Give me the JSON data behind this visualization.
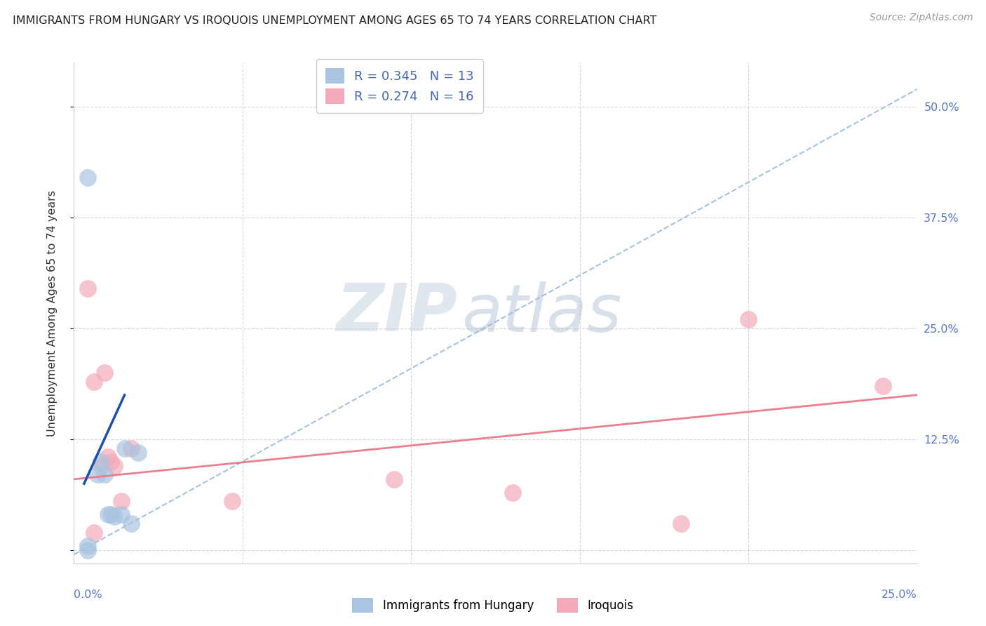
{
  "title": "IMMIGRANTS FROM HUNGARY VS IROQUOIS UNEMPLOYMENT AMONG AGES 65 TO 74 YEARS CORRELATION CHART",
  "source": "Source: ZipAtlas.com",
  "ylabel": "Unemployment Among Ages 65 to 74 years",
  "xlim": [
    0.0,
    0.25
  ],
  "ylim": [
    -0.015,
    0.55
  ],
  "legend1_R": "0.345",
  "legend1_N": "13",
  "legend2_R": "0.274",
  "legend2_N": "16",
  "blue_color": "#a8c4e0",
  "pink_color": "#f4aaba",
  "blue_line_solid_color": "#1a50b0",
  "blue_line_dashed_color": "#99bbdd",
  "pink_line_color": "#e8788a",
  "blue_points_x": [
    0.004,
    0.007,
    0.008,
    0.009,
    0.01,
    0.011,
    0.012,
    0.014,
    0.015,
    0.017,
    0.019,
    0.004,
    0.004
  ],
  "blue_points_y": [
    0.42,
    0.085,
    0.1,
    0.085,
    0.04,
    0.04,
    0.038,
    0.04,
    0.115,
    0.03,
    0.11,
    0.005,
    0.0
  ],
  "pink_points_x": [
    0.004,
    0.006,
    0.008,
    0.009,
    0.01,
    0.011,
    0.012,
    0.014,
    0.017,
    0.095,
    0.13,
    0.2,
    0.24,
    0.047,
    0.18,
    0.006
  ],
  "pink_points_y": [
    0.295,
    0.19,
    0.095,
    0.2,
    0.105,
    0.1,
    0.095,
    0.055,
    0.115,
    0.08,
    0.065,
    0.26,
    0.185,
    0.055,
    0.03,
    0.02
  ],
  "blue_solid_trend_x": [
    0.003,
    0.015
  ],
  "blue_solid_trend_y": [
    0.075,
    0.175
  ],
  "blue_dashed_trend_x": [
    0.0,
    0.25
  ],
  "blue_dashed_trend_y": [
    -0.005,
    0.52
  ],
  "pink_trend_x": [
    0.0,
    0.25
  ],
  "pink_trend_y": [
    0.08,
    0.175
  ],
  "ytick_values": [
    0.0,
    0.125,
    0.25,
    0.375,
    0.5
  ],
  "xtick_values": [
    0.0,
    0.05,
    0.1,
    0.15,
    0.2,
    0.25
  ],
  "right_ytick_labels": [
    "",
    "12.5%",
    "25.0%",
    "37.5%",
    "50.0%"
  ],
  "tick_label_color": "#5577cc",
  "watermark_zip": "ZIP",
  "watermark_atlas": "atlas"
}
